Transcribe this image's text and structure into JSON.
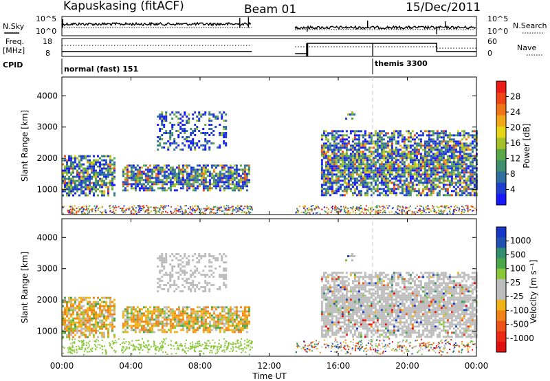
{
  "header": {
    "station": "Kapuskasing (fitACF)",
    "beam": "Beam 01",
    "date": "15/Dec/2011"
  },
  "status_panels": {
    "nsky_label": "N.Sky",
    "nsky_ticks": [
      "10^5",
      "10^0"
    ],
    "nsearch_label": "N.Search",
    "nsearch_ticks": [
      "10^5",
      "10^0"
    ],
    "freq_label": "Freq.",
    "freq_unit": "[MHz]",
    "freq_ticks": [
      "18",
      "8"
    ],
    "nave_label": "Nave",
    "nave_ticks": [
      "60",
      "0"
    ],
    "cpid_label": "CPID",
    "cpid_modes": [
      {
        "name": "normal (fast) 151",
        "start": "00:00",
        "end": "18:00"
      },
      {
        "name": "themis 3300",
        "start": "18:00",
        "end": "24:00"
      }
    ]
  },
  "chart_data": [
    {
      "type": "heatmap",
      "name": "power-panel",
      "ylabel": "Slant Range [km]",
      "yticks": [
        "1000",
        "2000",
        "3000",
        "4000"
      ],
      "ylim": [
        200,
        4600
      ],
      "colorbar": {
        "label": "Power [dB]",
        "ticks": [
          "4",
          "8",
          "12",
          "16",
          "20",
          "24",
          "28"
        ],
        "range": [
          0,
          32
        ],
        "colors": [
          "#1818ff",
          "#203fcf",
          "#2f6f9f",
          "#3e8f6f",
          "#5aa84a",
          "#a6c22a",
          "#e6d616",
          "#f0a818",
          "#f07418",
          "#ee4416",
          "#ee1a16"
        ]
      },
      "bands": [
        {
          "t0": 0.0,
          "t1": 3.0,
          "r0": 800,
          "r1": 2100,
          "level": "mixed"
        },
        {
          "t0": 3.5,
          "t1": 10.8,
          "r0": 1000,
          "r1": 1800,
          "level": "mixed"
        },
        {
          "t0": 5.5,
          "t1": 9.5,
          "r0": 2300,
          "r1": 3500,
          "level": "low"
        },
        {
          "t0": 15.0,
          "t1": 24.0,
          "r0": 800,
          "r1": 2900,
          "level": "mixed"
        },
        {
          "t0": 16.4,
          "t1": 16.9,
          "r0": 3300,
          "r1": 3500,
          "level": "low"
        }
      ]
    },
    {
      "type": "heatmap",
      "name": "velocity-panel",
      "ylabel": "Slant Range [km]",
      "yticks": [
        "1000",
        "2000",
        "3000",
        "4000"
      ],
      "ylim": [
        200,
        4600
      ],
      "xlabel": "Time UT",
      "xticks": [
        "00:00",
        "04:00",
        "08:00",
        "12:00",
        "16:00",
        "20:00",
        "00:00"
      ],
      "xlim": [
        0,
        24
      ],
      "colorbar": {
        "label": "Velocity [m s⁻¹]",
        "ticks": [
          "1000",
          "500",
          "100",
          "25",
          "-25",
          "-100",
          "-500",
          "-1000"
        ],
        "colors": [
          "#1838c8",
          "#2050b0",
          "#2f8f6f",
          "#4aa84a",
          "#8ac83a",
          "#bdbdbd",
          "#bdbdbd",
          "#f0b418",
          "#f08418",
          "#ee5418",
          "#ee2a16",
          "#e01010"
        ]
      }
    }
  ]
}
